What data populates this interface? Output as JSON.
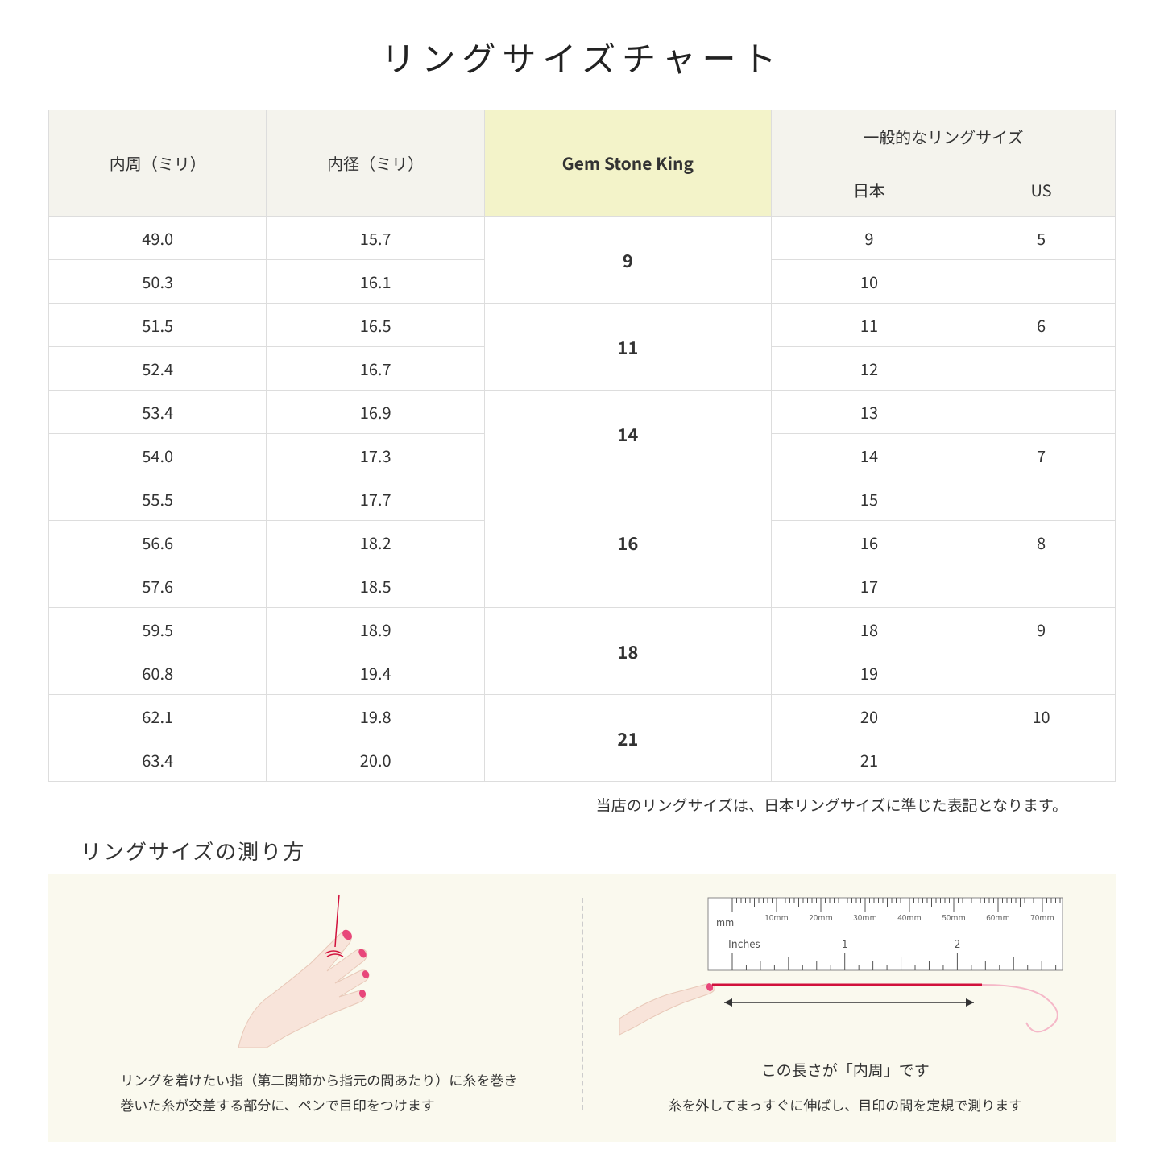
{
  "title": "リングサイズチャート",
  "table": {
    "headers": {
      "circumference": "内周（ミリ）",
      "diameter": "内径（ミリ）",
      "gsk": "Gem Stone King",
      "general": "一般的なリングサイズ",
      "japan": "日本",
      "us": "US"
    },
    "groups": [
      {
        "gsk": "9",
        "rows": [
          {
            "c": "49.0",
            "d": "15.7",
            "jp": "9",
            "us": "5"
          },
          {
            "c": "50.3",
            "d": "16.1",
            "jp": "10",
            "us": ""
          }
        ]
      },
      {
        "gsk": "11",
        "rows": [
          {
            "c": "51.5",
            "d": "16.5",
            "jp": "11",
            "us": "6"
          },
          {
            "c": "52.4",
            "d": "16.7",
            "jp": "12",
            "us": ""
          }
        ]
      },
      {
        "gsk": "14",
        "rows": [
          {
            "c": "53.4",
            "d": "16.9",
            "jp": "13",
            "us": ""
          },
          {
            "c": "54.0",
            "d": "17.3",
            "jp": "14",
            "us": "7"
          }
        ]
      },
      {
        "gsk": "16",
        "rows": [
          {
            "c": "55.5",
            "d": "17.7",
            "jp": "15",
            "us": ""
          },
          {
            "c": "56.6",
            "d": "18.2",
            "jp": "16",
            "us": "8"
          },
          {
            "c": "57.6",
            "d": "18.5",
            "jp": "17",
            "us": ""
          }
        ]
      },
      {
        "gsk": "18",
        "rows": [
          {
            "c": "59.5",
            "d": "18.9",
            "jp": "18",
            "us": "9"
          },
          {
            "c": "60.8",
            "d": "19.4",
            "jp": "19",
            "us": ""
          }
        ]
      },
      {
        "gsk": "21",
        "rows": [
          {
            "c": "62.1",
            "d": "19.8",
            "jp": "20",
            "us": "10"
          },
          {
            "c": "63.4",
            "d": "20.0",
            "jp": "21",
            "us": ""
          }
        ]
      }
    ],
    "header_bg": "#f4f3ed",
    "gsk_header_bg": "#f3f3c9",
    "border_color": "#dddddd"
  },
  "note": "当店のリングサイズは、日本リングサイズに準じた表記となります。",
  "howto": {
    "title": "リングサイズの測り方",
    "left_text": "リングを着けたい指（第二関節から指元の間あたり）に糸を巻き\n巻いた糸が交差する部分に、ペンで目印をつけます",
    "right_measure_label": "この長さが「内周」です",
    "right_text": "糸を外してまっすぐに伸ばし、目印の間を定規で測ります",
    "bg_color": "#faf9ee",
    "hand_skin_color": "#f8e4da",
    "nail_color": "#e8467a",
    "thread_color": "#d1113c",
    "ruler_labels": {
      "mm_ticks": [
        "10mm",
        "20mm",
        "30mm",
        "40mm",
        "50mm",
        "60mm",
        "70mm"
      ],
      "inches": "Inches",
      "inch_ticks": [
        "1",
        "2"
      ],
      "mm_label": "mm"
    }
  }
}
